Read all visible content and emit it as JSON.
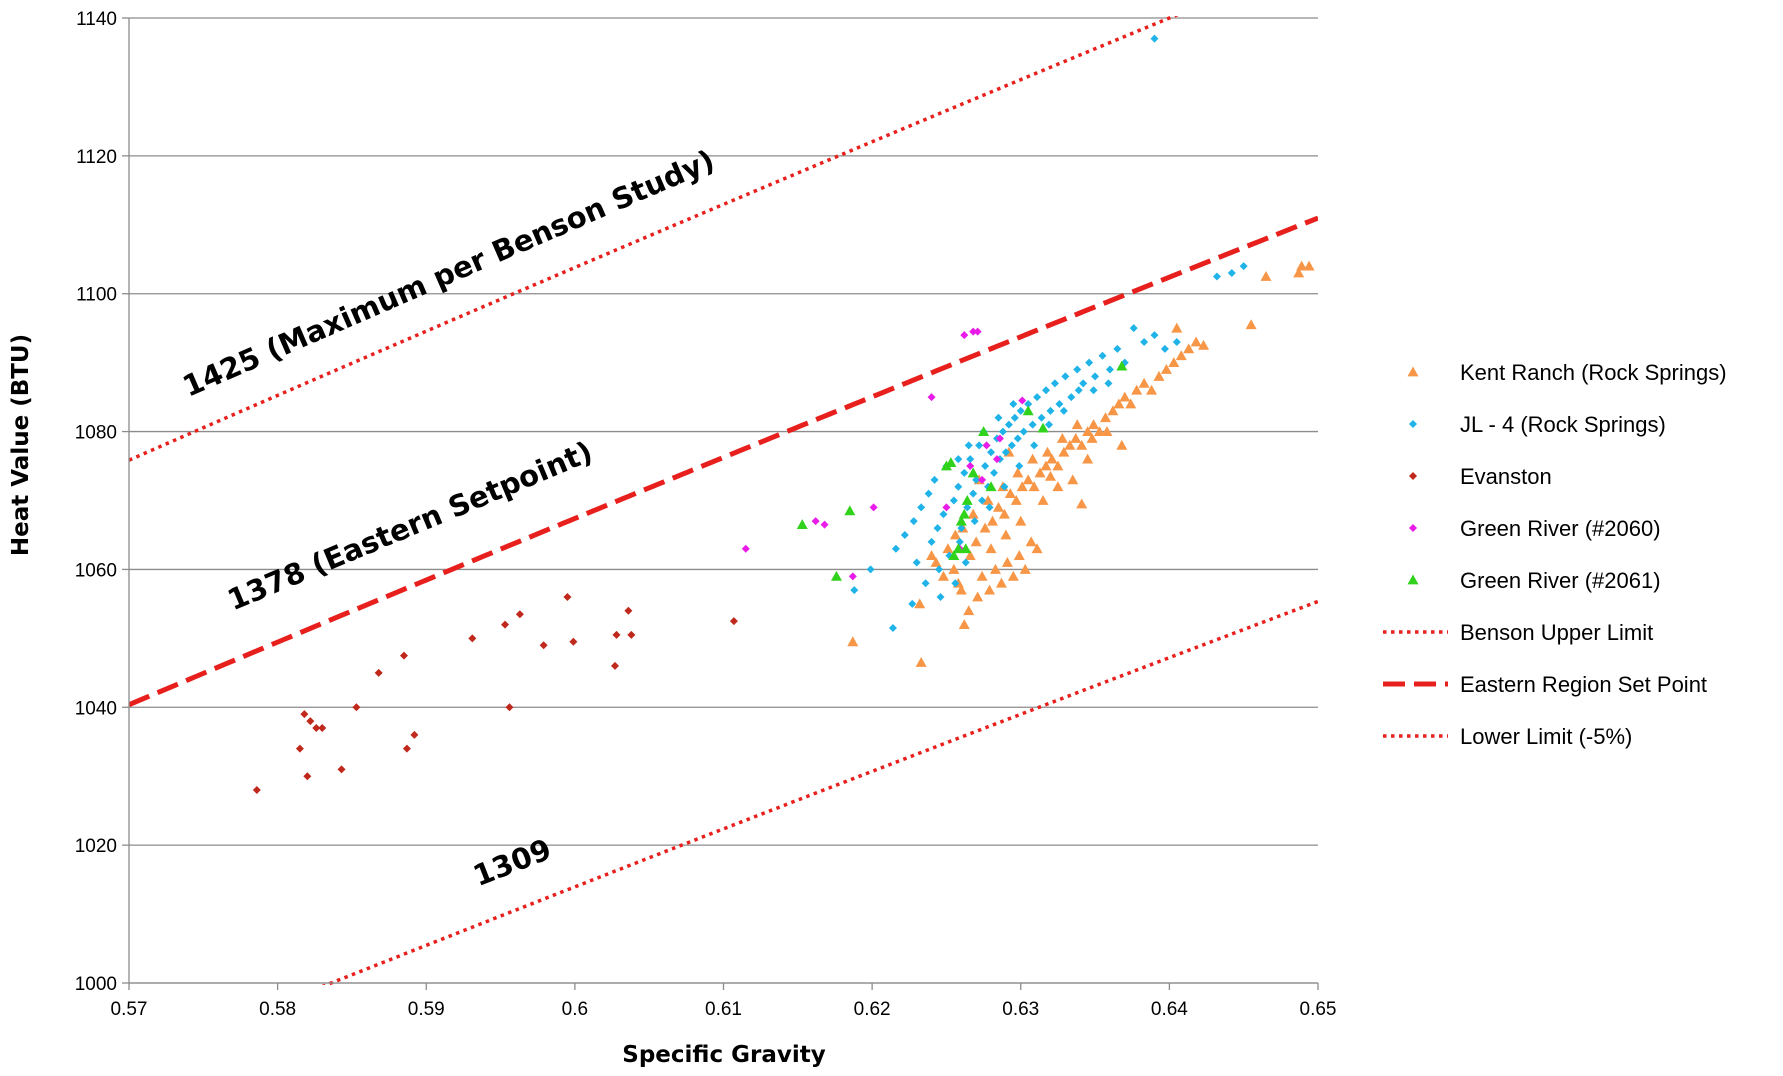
{
  "chart_data": {
    "type": "scatter",
    "xlabel": "Specific Gravity",
    "ylabel": "Heat Value (BTU)",
    "xlim": [
      0.57,
      0.65
    ],
    "ylim": [
      1000,
      1140
    ],
    "x_ticks": [
      "0.57",
      "0.58",
      "0.59",
      "0.6",
      "0.61",
      "0.62",
      "0.63",
      "0.64",
      "0.65"
    ],
    "y_ticks": [
      "1000",
      "1020",
      "1040",
      "1060",
      "1080",
      "1100",
      "1120",
      "1140"
    ],
    "x_tick_values": [
      0.57,
      0.58,
      0.59,
      0.6,
      0.61,
      0.62,
      0.63,
      0.64,
      0.65
    ],
    "y_tick_values": [
      1000,
      1020,
      1040,
      1060,
      1080,
      1100,
      1120,
      1140
    ],
    "grid": "horizontal",
    "legend_position": "right",
    "lines": [
      {
        "name": "Benson Upper Limit",
        "constant": 1425,
        "style": "dotted",
        "color": "#e8201d",
        "label": "1425 (Maximum per Benson Study)",
        "label_x": 0.574,
        "label_y": 1085
      },
      {
        "name": "Eastern Region Set Point",
        "constant": 1378,
        "style": "dashed",
        "color": "#e8201d",
        "label": "1378 (Eastern Setpoint)",
        "label_x": 0.577,
        "label_y": 1054
      },
      {
        "name": "Lower Limit (-5%)",
        "constant": 1309,
        "style": "dotted",
        "color": "#e8201d",
        "label": "1309",
        "label_x": 0.5935,
        "label_y": 1014
      }
    ],
    "series": [
      {
        "name": "Kent Ranch (Rock Springs)",
        "marker": "triangle",
        "color": "#f79646",
        "points": [
          [
            0.6187,
            1049.5
          ],
          [
            0.6233,
            1046.5
          ],
          [
            0.6232,
            1055
          ],
          [
            0.6248,
            1059
          ],
          [
            0.6258,
            1058
          ],
          [
            0.6262,
            1052
          ],
          [
            0.6265,
            1054
          ],
          [
            0.6271,
            1056
          ],
          [
            0.6274,
            1059
          ],
          [
            0.6279,
            1057
          ],
          [
            0.6283,
            1060
          ],
          [
            0.6287,
            1058
          ],
          [
            0.6291,
            1061
          ],
          [
            0.6295,
            1059
          ],
          [
            0.6299,
            1062
          ],
          [
            0.6303,
            1060
          ],
          [
            0.6307,
            1064
          ],
          [
            0.6311,
            1063
          ],
          [
            0.6266,
            1062
          ],
          [
            0.627,
            1064
          ],
          [
            0.6276,
            1066
          ],
          [
            0.6281,
            1067
          ],
          [
            0.6285,
            1069
          ],
          [
            0.6289,
            1068
          ],
          [
            0.6293,
            1071
          ],
          [
            0.6297,
            1070
          ],
          [
            0.6301,
            1072
          ],
          [
            0.6305,
            1073
          ],
          [
            0.6309,
            1072
          ],
          [
            0.6313,
            1074
          ],
          [
            0.6317,
            1075
          ],
          [
            0.6321,
            1076
          ],
          [
            0.6325,
            1075
          ],
          [
            0.6329,
            1077
          ],
          [
            0.6333,
            1078
          ],
          [
            0.6337,
            1079
          ],
          [
            0.6341,
            1078
          ],
          [
            0.6345,
            1080
          ],
          [
            0.6349,
            1081
          ],
          [
            0.6353,
            1080
          ],
          [
            0.6357,
            1082
          ],
          [
            0.6362,
            1083
          ],
          [
            0.6366,
            1084
          ],
          [
            0.637,
            1085
          ],
          [
            0.6374,
            1084
          ],
          [
            0.6378,
            1086
          ],
          [
            0.6383,
            1087
          ],
          [
            0.6388,
            1086
          ],
          [
            0.6393,
            1088
          ],
          [
            0.6398,
            1089
          ],
          [
            0.6403,
            1090
          ],
          [
            0.6408,
            1091
          ],
          [
            0.6413,
            1092
          ],
          [
            0.6418,
            1093
          ],
          [
            0.6423,
            1092.5
          ],
          [
            0.6455,
            1095.5
          ],
          [
            0.6465,
            1102.5
          ],
          [
            0.6487,
            1103
          ],
          [
            0.6489,
            1104
          ],
          [
            0.6494,
            1104
          ],
          [
            0.6243,
            1061
          ],
          [
            0.6251,
            1063
          ],
          [
            0.6256,
            1065
          ],
          [
            0.6261,
            1066
          ],
          [
            0.6268,
            1068
          ],
          [
            0.6278,
            1070
          ],
          [
            0.6288,
            1072
          ],
          [
            0.6298,
            1074
          ],
          [
            0.6308,
            1076
          ],
          [
            0.6318,
            1077
          ],
          [
            0.6328,
            1079
          ],
          [
            0.6338,
            1081
          ],
          [
            0.6348,
            1079
          ],
          [
            0.6358,
            1080
          ],
          [
            0.6315,
            1070
          ],
          [
            0.6325,
            1072
          ],
          [
            0.6335,
            1073
          ],
          [
            0.6345,
            1076
          ],
          [
            0.63,
            1067
          ],
          [
            0.629,
            1065
          ],
          [
            0.628,
            1063
          ],
          [
            0.626,
            1057
          ],
          [
            0.6255,
            1060
          ],
          [
            0.624,
            1062
          ],
          [
            0.6405,
            1095
          ],
          [
            0.6368,
            1078
          ],
          [
            0.6341,
            1069.5
          ],
          [
            0.632,
            1073.5
          ],
          [
            0.6272,
            1073
          ],
          [
            0.6292,
            1077
          ]
        ]
      },
      {
        "name": "JL - 4 (Rock Springs)",
        "marker": "diamond",
        "color": "#1fb3e8",
        "points": [
          [
            0.6188,
            1057
          ],
          [
            0.6199,
            1060
          ],
          [
            0.6214,
            1051.5
          ],
          [
            0.6216,
            1063
          ],
          [
            0.6222,
            1065
          ],
          [
            0.6228,
            1067
          ],
          [
            0.6233,
            1069
          ],
          [
            0.6238,
            1071
          ],
          [
            0.624,
            1064
          ],
          [
            0.6242,
            1073
          ],
          [
            0.6245,
            1060
          ],
          [
            0.6248,
            1068
          ],
          [
            0.625,
            1075
          ],
          [
            0.6252,
            1062
          ],
          [
            0.6255,
            1070
          ],
          [
            0.6258,
            1072
          ],
          [
            0.626,
            1066
          ],
          [
            0.6262,
            1074
          ],
          [
            0.6264,
            1069
          ],
          [
            0.6266,
            1076
          ],
          [
            0.6268,
            1071
          ],
          [
            0.627,
            1073
          ],
          [
            0.6272,
            1078
          ],
          [
            0.6274,
            1070
          ],
          [
            0.6276,
            1075
          ],
          [
            0.6278,
            1072
          ],
          [
            0.628,
            1077
          ],
          [
            0.6282,
            1074
          ],
          [
            0.6284,
            1079
          ],
          [
            0.6286,
            1076
          ],
          [
            0.6288,
            1080
          ],
          [
            0.629,
            1077
          ],
          [
            0.6292,
            1081
          ],
          [
            0.6294,
            1078
          ],
          [
            0.6296,
            1082
          ],
          [
            0.6298,
            1079
          ],
          [
            0.63,
            1083
          ],
          [
            0.6302,
            1080
          ],
          [
            0.6305,
            1084
          ],
          [
            0.6308,
            1081
          ],
          [
            0.6311,
            1085
          ],
          [
            0.6314,
            1082
          ],
          [
            0.6317,
            1086
          ],
          [
            0.632,
            1083
          ],
          [
            0.6323,
            1087
          ],
          [
            0.6326,
            1084
          ],
          [
            0.633,
            1088
          ],
          [
            0.6334,
            1085
          ],
          [
            0.6338,
            1089
          ],
          [
            0.6342,
            1087
          ],
          [
            0.6346,
            1090
          ],
          [
            0.635,
            1088
          ],
          [
            0.6355,
            1091
          ],
          [
            0.636,
            1089
          ],
          [
            0.6365,
            1092
          ],
          [
            0.637,
            1090
          ],
          [
            0.6376,
            1095
          ],
          [
            0.6383,
            1093
          ],
          [
            0.639,
            1094
          ],
          [
            0.6397,
            1092
          ],
          [
            0.6405,
            1093
          ],
          [
            0.6432,
            1102.5
          ],
          [
            0.6442,
            1103
          ],
          [
            0.645,
            1104
          ],
          [
            0.639,
            1137
          ],
          [
            0.6246,
            1056
          ],
          [
            0.6256,
            1058
          ],
          [
            0.6263,
            1061
          ],
          [
            0.6236,
            1058
          ],
          [
            0.623,
            1061
          ],
          [
            0.6227,
            1055
          ],
          [
            0.6244,
            1066
          ],
          [
            0.6259,
            1064
          ],
          [
            0.6269,
            1067
          ],
          [
            0.6279,
            1069
          ],
          [
            0.6289,
            1072
          ],
          [
            0.6299,
            1075
          ],
          [
            0.6309,
            1078
          ],
          [
            0.6319,
            1081
          ],
          [
            0.6329,
            1083
          ],
          [
            0.6339,
            1086
          ],
          [
            0.6349,
            1086
          ],
          [
            0.6359,
            1087
          ],
          [
            0.6258,
            1076
          ],
          [
            0.6265,
            1078
          ],
          [
            0.6275,
            1080
          ],
          [
            0.6285,
            1082
          ],
          [
            0.6295,
            1084
          ]
        ]
      },
      {
        "name": "Evanston",
        "marker": "diamond",
        "color": "#c0281c",
        "points": [
          [
            0.5786,
            1028
          ],
          [
            0.5815,
            1034
          ],
          [
            0.5818,
            1039
          ],
          [
            0.582,
            1030
          ],
          [
            0.5822,
            1038
          ],
          [
            0.5826,
            1037
          ],
          [
            0.583,
            1037
          ],
          [
            0.5843,
            1031
          ],
          [
            0.5853,
            1040
          ],
          [
            0.5868,
            1045
          ],
          [
            0.5885,
            1047.5
          ],
          [
            0.5887,
            1034
          ],
          [
            0.5892,
            1036
          ],
          [
            0.5931,
            1050
          ],
          [
            0.5953,
            1052
          ],
          [
            0.5956,
            1040
          ],
          [
            0.5963,
            1053.5
          ],
          [
            0.5979,
            1049
          ],
          [
            0.5995,
            1056
          ],
          [
            0.5999,
            1049.5
          ],
          [
            0.6027,
            1046
          ],
          [
            0.6028,
            1050.5
          ],
          [
            0.6036,
            1054
          ],
          [
            0.6038,
            1050.5
          ],
          [
            0.6107,
            1052.5
          ]
        ]
      },
      {
        "name": "Green River (#2060)",
        "marker": "diamond",
        "color": "#e81be8",
        "points": [
          [
            0.6115,
            1063
          ],
          [
            0.6162,
            1067
          ],
          [
            0.6168,
            1066.5
          ],
          [
            0.6187,
            1059
          ],
          [
            0.6201,
            1069
          ],
          [
            0.624,
            1085
          ],
          [
            0.625,
            1069
          ],
          [
            0.6259,
            1063
          ],
          [
            0.6262,
            1094
          ],
          [
            0.6266,
            1075
          ],
          [
            0.6268,
            1094.5
          ],
          [
            0.6271,
            1094.5
          ],
          [
            0.6274,
            1073
          ],
          [
            0.6277,
            1078
          ],
          [
            0.6286,
            1079
          ],
          [
            0.6301,
            1084.5
          ],
          [
            0.6284,
            1076
          ]
        ]
      },
      {
        "name": "Green River (#2061)",
        "marker": "triangle",
        "color": "#31d21c",
        "points": [
          [
            0.6153,
            1066.5
          ],
          [
            0.6176,
            1059
          ],
          [
            0.6185,
            1068.5
          ],
          [
            0.625,
            1075
          ],
          [
            0.6253,
            1075.5
          ],
          [
            0.6255,
            1062
          ],
          [
            0.6258,
            1063
          ],
          [
            0.626,
            1067
          ],
          [
            0.6262,
            1068
          ],
          [
            0.6264,
            1070
          ],
          [
            0.6268,
            1074
          ],
          [
            0.6275,
            1080
          ],
          [
            0.628,
            1072
          ],
          [
            0.6305,
            1083
          ],
          [
            0.6315,
            1080.5
          ],
          [
            0.6368,
            1089.5
          ],
          [
            0.6263,
            1063
          ]
        ]
      }
    ]
  }
}
